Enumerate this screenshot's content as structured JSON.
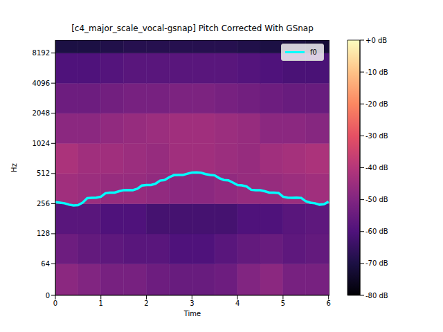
{
  "chart_data": {
    "type": "spectrogram",
    "title": "[c4_major_scale_vocal-gsnap] Pitch Corrected With GSnap",
    "xlabel": "Time",
    "ylabel": "Hz",
    "log": "y",
    "legend": "upper right",
    "xlim": [
      0,
      6.02
    ],
    "xticks": [
      0,
      1,
      2,
      3,
      4,
      5,
      6
    ],
    "ylim": [
      0,
      11025
    ],
    "yticks": [
      0,
      64,
      128,
      256,
      512,
      1024,
      2048,
      4096,
      8192
    ],
    "x": [
      0.0,
      0.1,
      0.2,
      0.3,
      0.4,
      0.5,
      0.6,
      0.7,
      0.8,
      0.9,
      1.0,
      1.1,
      1.2,
      1.3,
      1.4,
      1.5,
      1.6,
      1.7,
      1.8,
      1.9,
      2.0,
      2.1,
      2.2,
      2.3,
      2.4,
      2.5,
      2.6,
      2.7,
      2.8,
      2.9,
      3.0,
      3.1,
      3.2,
      3.3,
      3.4,
      3.5,
      3.6,
      3.7,
      3.8,
      3.9,
      4.0,
      4.1,
      4.2,
      4.3,
      4.4,
      4.5,
      4.6,
      4.7,
      4.8,
      4.9,
      5.0,
      5.1,
      5.2,
      5.3,
      5.4,
      5.5,
      5.6,
      5.7,
      5.8,
      5.9,
      6.0
    ],
    "series": [
      {
        "name": "f0",
        "color": "#00ffff",
        "values": [
          265,
          262,
          258,
          250,
          246,
          247,
          262,
          290,
          293,
          294,
          300,
          325,
          329,
          330,
          340,
          349,
          350,
          349,
          360,
          388,
          392,
          393,
          405,
          435,
          440,
          470,
          492,
          495,
          494,
          510,
          522,
          524,
          521,
          505,
          494,
          490,
          460,
          441,
          438,
          415,
          393,
          390,
          380,
          352,
          349,
          348,
          340,
          330,
          329,
          327,
          300,
          294,
          293,
          294,
          292,
          270,
          262,
          258,
          250,
          252,
          268
        ]
      }
    ],
    "spectrogram": {
      "time_edges": [
        0,
        0.5,
        1,
        1.5,
        2,
        2.5,
        3,
        3.5,
        4,
        4.5,
        5,
        5.5,
        6.02
      ],
      "freq_edges": [
        0,
        64,
        128,
        256,
        512,
        1024,
        2048,
        4096,
        8192,
        11025
      ],
      "db": [
        [
          -48,
          -50,
          -52,
          -52,
          -54,
          -55,
          -55,
          -54,
          -50,
          -48,
          -52,
          -52
        ],
        [
          -54,
          -56,
          -57,
          -58,
          -58,
          -60,
          -60,
          -58,
          -56,
          -55,
          -57,
          -56
        ],
        [
          -58,
          -58,
          -60,
          -60,
          -62,
          -62,
          -62,
          -62,
          -60,
          -60,
          -58,
          -57
        ],
        [
          -44,
          -45,
          -46,
          -46,
          -47,
          -48,
          -48,
          -47,
          -46,
          -46,
          -45,
          -44
        ],
        [
          -42,
          -44,
          -44,
          -45,
          -46,
          -44,
          -44,
          -45,
          -46,
          -44,
          -43,
          -42
        ],
        [
          -48,
          -48,
          -47,
          -46,
          -45,
          -44,
          -44,
          -45,
          -46,
          -48,
          -48,
          -49
        ],
        [
          -54,
          -54,
          -53,
          -52,
          -52,
          -51,
          -51,
          -52,
          -53,
          -54,
          -55,
          -55
        ],
        [
          -60,
          -60,
          -59,
          -58,
          -58,
          -58,
          -58,
          -58,
          -59,
          -60,
          -61,
          -61
        ],
        [
          -70,
          -70,
          -69,
          -68,
          -68,
          -68,
          -68,
          -68,
          -69,
          -70,
          -71,
          -72
        ]
      ]
    },
    "colorbar": {
      "range": [
        -80,
        0
      ],
      "ticks": [
        {
          "value": 0,
          "label": "+0 dB"
        },
        {
          "value": -10,
          "label": "-10 dB"
        },
        {
          "value": -20,
          "label": "-20 dB"
        },
        {
          "value": -30,
          "label": "-30 dB"
        },
        {
          "value": -40,
          "label": "-40 dB"
        },
        {
          "value": -50,
          "label": "-50 dB"
        },
        {
          "value": -60,
          "label": "-60 dB"
        },
        {
          "value": -70,
          "label": "-70 dB"
        },
        {
          "value": -80,
          "label": "-80 dB"
        }
      ]
    }
  }
}
